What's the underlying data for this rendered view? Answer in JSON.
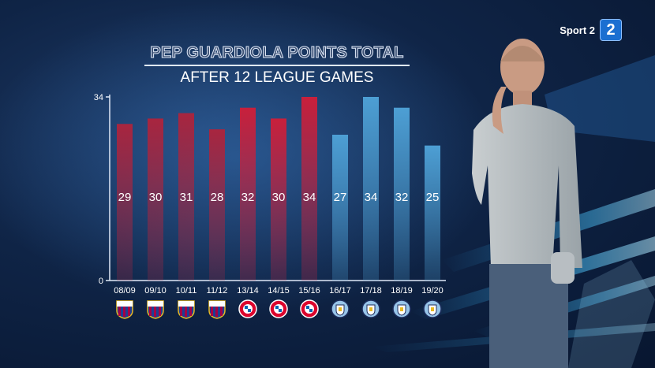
{
  "broadcaster": {
    "name": "Sport 2",
    "badge": "2"
  },
  "chart_data": {
    "type": "bar",
    "title": "PEP GUARDIOLA POINTS TOTAL",
    "subtitle": "AFTER 12 LEAGUE GAMES",
    "categories": [
      "08/09",
      "09/10",
      "10/11",
      "11/12",
      "13/14",
      "14/15",
      "15/16",
      "16/17",
      "17/18",
      "18/19",
      "19/20"
    ],
    "values": [
      29,
      30,
      31,
      28,
      32,
      30,
      34,
      27,
      34,
      32,
      25
    ],
    "ylim": [
      0,
      34
    ],
    "yticks": [
      "0",
      "34"
    ],
    "clubs": [
      "barcelona-crest-icon",
      "barcelona-crest-icon",
      "barcelona-crest-icon",
      "barcelona-crest-icon",
      "bayern-crest-icon",
      "bayern-crest-icon",
      "bayern-crest-icon",
      "man-city-crest-icon",
      "man-city-crest-icon",
      "man-city-crest-icon",
      "man-city-crest-icon"
    ],
    "colors": {
      "barcelona": "#a8253f",
      "bayern": "#c8203c",
      "man_city": "#3f8fc6",
      "man_city_light": "#5ab0df"
    },
    "grid": false,
    "legend": "none"
  }
}
